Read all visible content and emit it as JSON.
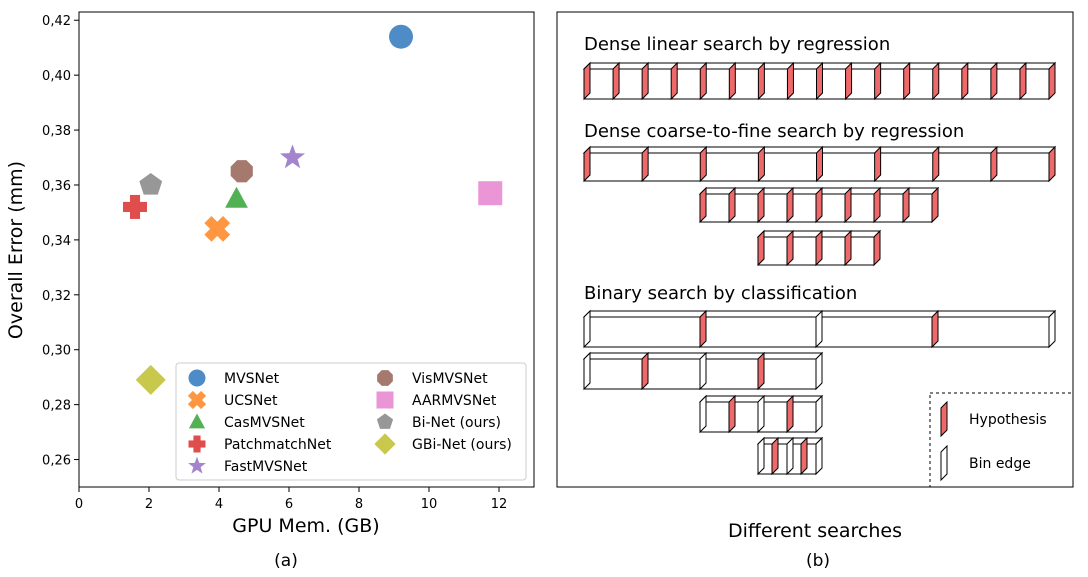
{
  "panel_a": {
    "caption": "(a)",
    "chart_data": {
      "type": "scatter",
      "title": "",
      "xlabel": "GPU Mem. (GB)",
      "ylabel": "Overall Error (mm)",
      "xlim": [
        0,
        13
      ],
      "ylim": [
        0.25,
        0.423
      ],
      "xticks": [
        0,
        2,
        4,
        6,
        8,
        10,
        12
      ],
      "yticks": [
        0.26,
        0.28,
        0.3,
        0.32,
        0.34,
        0.36,
        0.38,
        0.4,
        0.42
      ],
      "ytick_labels": [
        "0,26",
        "0,28",
        "0,30",
        "0,32",
        "0,34",
        "0,36",
        "0,38",
        "0,40",
        "0,42"
      ],
      "grid": false,
      "legend_position": "lower-center",
      "series": [
        {
          "name": "MVSNet",
          "x": 9.2,
          "y": 0.414,
          "marker": "circle",
          "color": "#3a7fc0"
        },
        {
          "name": "UCSNet",
          "x": 3.95,
          "y": 0.344,
          "marker": "x",
          "color": "#ff8c2e"
        },
        {
          "name": "CasMVSNet",
          "x": 4.5,
          "y": 0.355,
          "marker": "triangle",
          "color": "#3fa83f"
        },
        {
          "name": "PatchmatchNet",
          "x": 1.6,
          "y": 0.352,
          "marker": "plus",
          "color": "#dc3a3a"
        },
        {
          "name": "FastMVSNet",
          "x": 6.1,
          "y": 0.37,
          "marker": "star",
          "color": "#9a78c8"
        },
        {
          "name": "VisMVSNet",
          "x": 4.65,
          "y": 0.365,
          "marker": "octagon",
          "color": "#9b6a5e"
        },
        {
          "name": "AARMVSNet",
          "x": 11.75,
          "y": 0.357,
          "marker": "square",
          "color": "#e88ad2"
        },
        {
          "name": "Bi-Net (ours)",
          "x": 2.05,
          "y": 0.36,
          "marker": "pentagon",
          "color": "#8c8c8c"
        },
        {
          "name": "GBi-Net (ours)",
          "x": 2.05,
          "y": 0.289,
          "marker": "diamond",
          "color": "#c2c23a"
        }
      ]
    }
  },
  "panel_b": {
    "caption": "(b)",
    "xlabel": "Different searches",
    "colors": {
      "hypothesis": "#ee6a6a",
      "box_edge": "#000000"
    },
    "sections": [
      {
        "title": "Dense linear search by regression"
      },
      {
        "title": "Dense coarse-to-fine search by regression"
      },
      {
        "title": "Binary search by classification"
      }
    ],
    "legend": {
      "hypothesis": "Hypothesis",
      "bin_edge": "Bin edge"
    }
  }
}
